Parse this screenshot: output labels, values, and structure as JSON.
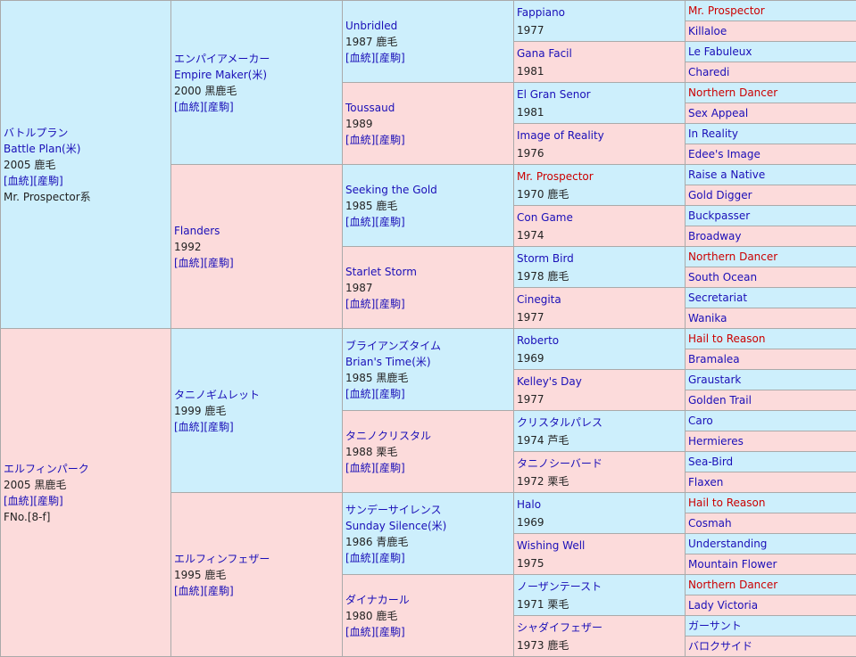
{
  "gen1": [
    {
      "name": "バトルプラン",
      "sub": "Battle Plan(米)",
      "year": "2005 鹿毛",
      "links": "[血統][産駒]",
      "extra": "Mr. Prospector系"
    },
    {
      "name": "エルフィンパーク",
      "year": "2005 黒鹿毛",
      "links": "[血統][産駒]",
      "extra": "FNo.[8-f]"
    }
  ],
  "gen2": [
    {
      "name": "エンパイアメーカー",
      "sub": "Empire Maker(米)",
      "year": "2000 黒鹿毛",
      "links": "[血統][産駒]"
    },
    {
      "name": "Flanders",
      "year": "1992",
      "links": "[血統][産駒]"
    },
    {
      "name": "タニノギムレット",
      "year": "1999 鹿毛",
      "links": "[血統][産駒]"
    },
    {
      "name": "エルフィンフェザー",
      "year": "1995 鹿毛",
      "links": "[血統][産駒]"
    }
  ],
  "gen3": [
    {
      "name": "Unbridled",
      "year": "1987 鹿毛",
      "links": "[血統][産駒]"
    },
    {
      "name": "Toussaud",
      "year": "1989",
      "links": "[血統][産駒]"
    },
    {
      "name": "Seeking the Gold",
      "year": "1985 鹿毛",
      "links": "[血統][産駒]"
    },
    {
      "name": "Starlet Storm",
      "year": "1987",
      "links": "[血統][産駒]"
    },
    {
      "name": "ブライアンズタイム",
      "sub": "Brian's Time(米)",
      "year": "1985 黒鹿毛",
      "links": "[血統][産駒]"
    },
    {
      "name": "タニノクリスタル",
      "year": "1988 栗毛",
      "links": "[血統][産駒]"
    },
    {
      "name": "サンデーサイレンス",
      "sub": "Sunday Silence(米)",
      "year": "1986 青鹿毛",
      "links": "[血統][産駒]"
    },
    {
      "name": "ダイナカール",
      "year": "1980 鹿毛",
      "links": "[血統][産駒]"
    }
  ],
  "gen4": [
    {
      "name": "Fappiano",
      "year": "1977"
    },
    {
      "name": "Gana Facil",
      "year": "1981"
    },
    {
      "name": "El Gran Senor",
      "year": "1981"
    },
    {
      "name": "Image of Reality",
      "year": "1976"
    },
    {
      "name": "Mr. Prospector",
      "year": "1970 鹿毛"
    },
    {
      "name": "Con Game",
      "year": "1974"
    },
    {
      "name": "Storm Bird",
      "year": "1978 鹿毛"
    },
    {
      "name": "Cinegita",
      "year": "1977"
    },
    {
      "name": "Roberto",
      "year": "1969"
    },
    {
      "name": "Kelley's Day",
      "year": "1977"
    },
    {
      "name": "クリスタルパレス",
      "year": "1974 芦毛"
    },
    {
      "name": "タニノシーバード",
      "year": "1972 栗毛"
    },
    {
      "name": "Halo",
      "year": "1969"
    },
    {
      "name": "Wishing Well",
      "year": "1975"
    },
    {
      "name": "ノーザンテースト",
      "year": "1971 栗毛"
    },
    {
      "name": "シャダイフェザー",
      "year": "1973 鹿毛"
    }
  ],
  "gen5": [
    "Mr. Prospector",
    "Killaloe",
    "Le Fabuleux",
    "Charedi",
    "Northern Dancer",
    "Sex Appeal",
    "In Reality",
    "Edee's Image",
    "Raise a Native",
    "Gold Digger",
    "Buckpasser",
    "Broadway",
    "Northern Dancer",
    "South Ocean",
    "Secretariat",
    "Wanika",
    "Hail to Reason",
    "Bramalea",
    "Graustark",
    "Golden Trail",
    "Caro",
    "Hermieres",
    "Sea-Bird",
    "Flaxen",
    "Hail to Reason",
    "Cosmah",
    "Understanding",
    "Mountain Flower",
    "Northern Dancer",
    "Lady Victoria",
    "ガーサント",
    "バロクサイド"
  ],
  "colors": {
    "sire_bg": "#cdeffc",
    "dam_bg": "#fcdbdb",
    "link": "#1a0fb8",
    "highlight": "#cc0000",
    "border": "#aaaaaa"
  }
}
